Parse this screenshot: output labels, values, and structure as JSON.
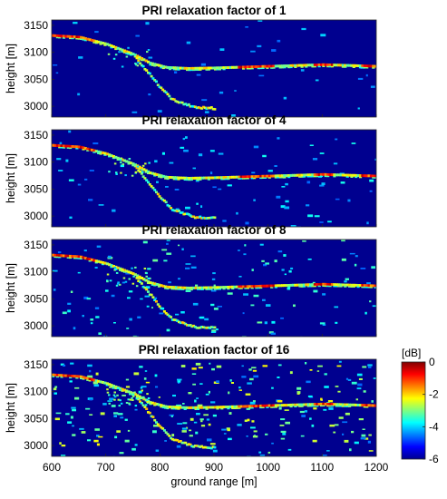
{
  "chart_data": {
    "type": "heatmap",
    "colormap": "jet",
    "background_color": "#00008f",
    "xlabel": "ground range [m]",
    "ylabel": "height [m]",
    "xlim": [
      600,
      1200
    ],
    "ylim": [
      2980,
      3160
    ],
    "x_ticks": [
      "600",
      "700",
      "800",
      "900",
      "1000",
      "1100",
      "1200"
    ],
    "y_ticks": [
      "3000",
      "3050",
      "3100",
      "3150"
    ],
    "colorbar": {
      "label": "[dB]",
      "range": [
        -6,
        0
      ],
      "ticks": [
        "0",
        "-2",
        "-4",
        "-6"
      ]
    },
    "panels": [
      {
        "title": "PRI relaxation factor of 1",
        "relaxation_factor": 1
      },
      {
        "title": "PRI relaxation factor of 4",
        "relaxation_factor": 4
      },
      {
        "title": "PRI relaxation factor of 8",
        "relaxation_factor": 8
      },
      {
        "title": "PRI relaxation factor of 16",
        "relaxation_factor": 16
      }
    ],
    "traces": {
      "upper_surface": [
        [
          600,
          3131
        ],
        [
          650,
          3128
        ],
        [
          700,
          3115
        ],
        [
          750,
          3096
        ],
        [
          780,
          3080
        ],
        [
          810,
          3072
        ],
        [
          850,
          3070
        ],
        [
          900,
          3071
        ],
        [
          1000,
          3074
        ],
        [
          1100,
          3077
        ],
        [
          1200,
          3074
        ]
      ],
      "lower_branch": [
        [
          755,
          3090
        ],
        [
          780,
          3060
        ],
        [
          800,
          3035
        ],
        [
          820,
          3015
        ],
        [
          860,
          3000
        ],
        [
          900,
          2998
        ]
      ]
    }
  }
}
